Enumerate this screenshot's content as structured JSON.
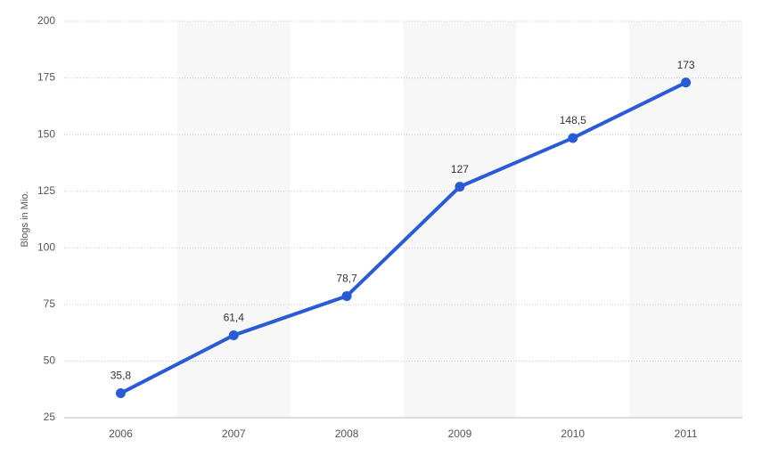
{
  "chart_data": {
    "type": "line",
    "y_label": "Blogs in Mio.",
    "categories": [
      "2006",
      "2007",
      "2008",
      "2009",
      "2010",
      "2011"
    ],
    "values": [
      35.8,
      61.4,
      78.7,
      127,
      148.5,
      173
    ],
    "value_labels": [
      "35,8",
      "61,4",
      "78,7",
      "127",
      "148,5",
      "173"
    ],
    "color": "#2a5bd7",
    "ylim": [
      25,
      200
    ],
    "yticks": [
      25,
      50,
      75,
      100,
      125,
      150,
      175,
      200
    ],
    "grid": true
  }
}
